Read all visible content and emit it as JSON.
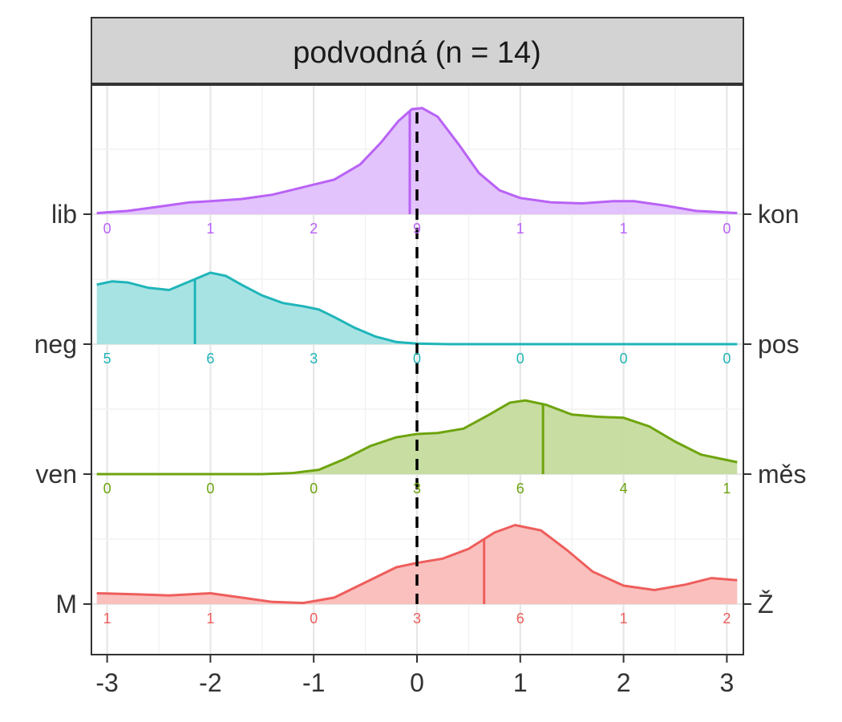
{
  "chart_data": {
    "type": "ridgeline",
    "title": "",
    "facet_label": "podvodná (n = 14)",
    "xlabel": "",
    "ylabel": "",
    "xlim": [
      -3.1,
      3.1
    ],
    "x_ticks": [
      -3,
      -2,
      -1,
      0,
      1,
      2,
      3
    ],
    "x_tick_labels": [
      "-3",
      "-2",
      "-1",
      "0",
      "1",
      "2",
      "3"
    ],
    "reference_line_x": 0,
    "count_positions": [
      -3,
      -2,
      -1,
      0,
      1,
      2,
      3
    ],
    "grid": true,
    "legend": "none",
    "series": [
      {
        "left_label": "lib",
        "right_label": "kon",
        "color": "#B962F6",
        "fill": "#E2C0FB",
        "median": -0.07,
        "counts": [
          "0",
          "1",
          "2",
          "9",
          "1",
          "1",
          "0"
        ],
        "density": [
          [
            -3.1,
            0.01
          ],
          [
            -2.8,
            0.03
          ],
          [
            -2.5,
            0.07
          ],
          [
            -2.2,
            0.11
          ],
          [
            -2.0,
            0.12
          ],
          [
            -1.7,
            0.14
          ],
          [
            -1.4,
            0.18
          ],
          [
            -1.1,
            0.25
          ],
          [
            -0.8,
            0.32
          ],
          [
            -0.55,
            0.46
          ],
          [
            -0.35,
            0.66
          ],
          [
            -0.18,
            0.86
          ],
          [
            -0.05,
            0.97
          ],
          [
            0.05,
            0.98
          ],
          [
            0.2,
            0.9
          ],
          [
            0.4,
            0.65
          ],
          [
            0.6,
            0.38
          ],
          [
            0.8,
            0.22
          ],
          [
            1.0,
            0.15
          ],
          [
            1.3,
            0.11
          ],
          [
            1.6,
            0.1
          ],
          [
            1.9,
            0.12
          ],
          [
            2.1,
            0.12
          ],
          [
            2.4,
            0.08
          ],
          [
            2.7,
            0.03
          ],
          [
            3.1,
            0.01
          ]
        ]
      },
      {
        "left_label": "neg",
        "right_label": "pos",
        "color": "#1FB5B9",
        "fill": "#A3E1E3",
        "median": -2.15,
        "counts": [
          "5",
          "6",
          "3",
          "0",
          "0",
          "0",
          "0"
        ],
        "density": [
          [
            -3.1,
            0.55
          ],
          [
            -2.95,
            0.58
          ],
          [
            -2.8,
            0.57
          ],
          [
            -2.6,
            0.52
          ],
          [
            -2.4,
            0.5
          ],
          [
            -2.2,
            0.58
          ],
          [
            -2.0,
            0.66
          ],
          [
            -1.85,
            0.63
          ],
          [
            -1.7,
            0.55
          ],
          [
            -1.5,
            0.45
          ],
          [
            -1.3,
            0.38
          ],
          [
            -1.1,
            0.35
          ],
          [
            -0.95,
            0.32
          ],
          [
            -0.8,
            0.25
          ],
          [
            -0.6,
            0.15
          ],
          [
            -0.4,
            0.07
          ],
          [
            -0.2,
            0.02
          ],
          [
            0.0,
            0.005
          ],
          [
            0.3,
            0.0
          ],
          [
            3.1,
            0.0
          ]
        ]
      },
      {
        "left_label": "ven",
        "right_label": "měs",
        "color": "#6EA40E",
        "fill": "#C5DB9D",
        "median": 1.22,
        "counts": [
          "0",
          "0",
          "0",
          "3",
          "6",
          "4",
          "1"
        ],
        "density": [
          [
            -3.1,
            0.0
          ],
          [
            -1.5,
            0.0
          ],
          [
            -1.2,
            0.01
          ],
          [
            -0.95,
            0.04
          ],
          [
            -0.7,
            0.14
          ],
          [
            -0.45,
            0.26
          ],
          [
            -0.2,
            0.34
          ],
          [
            0.0,
            0.37
          ],
          [
            0.2,
            0.38
          ],
          [
            0.45,
            0.42
          ],
          [
            0.7,
            0.55
          ],
          [
            0.9,
            0.66
          ],
          [
            1.05,
            0.68
          ],
          [
            1.25,
            0.64
          ],
          [
            1.5,
            0.55
          ],
          [
            1.75,
            0.53
          ],
          [
            2.0,
            0.52
          ],
          [
            2.25,
            0.44
          ],
          [
            2.5,
            0.3
          ],
          [
            2.75,
            0.18
          ],
          [
            3.1,
            0.11
          ]
        ]
      },
      {
        "left_label": "M",
        "right_label": "Ž",
        "color": "#EE5E5C",
        "fill": "#F9BDBA",
        "median": 0.65,
        "counts": [
          "1",
          "1",
          "0",
          "3",
          "6",
          "1",
          "2"
        ],
        "density": [
          [
            -3.1,
            0.1
          ],
          [
            -2.7,
            0.09
          ],
          [
            -2.4,
            0.08
          ],
          [
            -2.0,
            0.1
          ],
          [
            -1.7,
            0.06
          ],
          [
            -1.4,
            0.02
          ],
          [
            -1.1,
            0.01
          ],
          [
            -0.8,
            0.06
          ],
          [
            -0.5,
            0.2
          ],
          [
            -0.2,
            0.34
          ],
          [
            0.0,
            0.38
          ],
          [
            0.25,
            0.42
          ],
          [
            0.5,
            0.51
          ],
          [
            0.75,
            0.66
          ],
          [
            0.95,
            0.73
          ],
          [
            1.2,
            0.68
          ],
          [
            1.45,
            0.5
          ],
          [
            1.7,
            0.3
          ],
          [
            2.0,
            0.17
          ],
          [
            2.3,
            0.13
          ],
          [
            2.6,
            0.18
          ],
          [
            2.85,
            0.24
          ],
          [
            3.1,
            0.22
          ]
        ]
      }
    ]
  }
}
